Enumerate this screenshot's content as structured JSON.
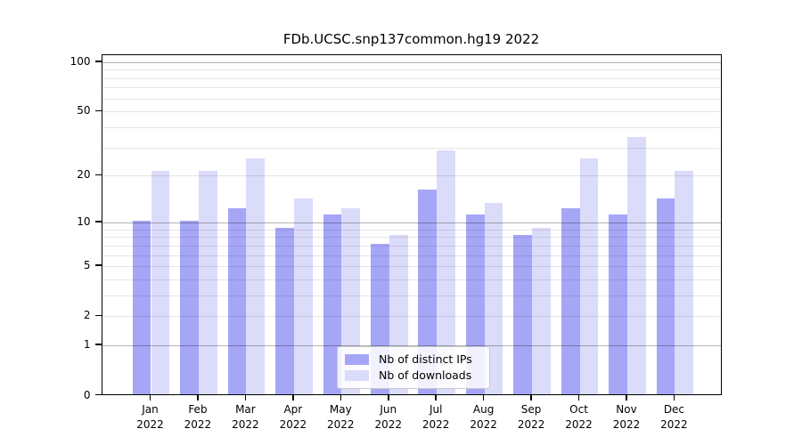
{
  "chart_data": {
    "type": "bar",
    "title": "FDb.UCSC.snp137common.hg19 2022",
    "categories": [
      "Jan",
      "Feb",
      "Mar",
      "Apr",
      "May",
      "Jun",
      "Jul",
      "Aug",
      "Sep",
      "Oct",
      "Nov",
      "Dec"
    ],
    "category_year": "2022",
    "series": [
      {
        "name": "Nb of distinct IPs",
        "color": "#a6a6f7",
        "values": [
          10,
          10,
          12,
          9,
          11,
          7,
          16,
          11,
          8,
          12,
          11,
          14
        ]
      },
      {
        "name": "Nb of downloads",
        "color": "#dbdbfa",
        "values": [
          21,
          21,
          25,
          14,
          12,
          8,
          28,
          13,
          9,
          25,
          34,
          21
        ]
      }
    ],
    "yscale": "log1p",
    "ylim": [
      0,
      110
    ],
    "yticks": [
      0,
      1,
      2,
      5,
      10,
      20,
      50,
      100
    ],
    "grid": true,
    "grid_minor_values": [
      2,
      3,
      4,
      5,
      6,
      7,
      8,
      9,
      20,
      30,
      40,
      50,
      60,
      70,
      80,
      90
    ],
    "grid_major_values": [
      1,
      10,
      100
    ],
    "legend_position": "lower center",
    "colors": {
      "background": "#ffffff",
      "frame": "#000000",
      "grid_minor": "rgba(0,0,0,0.10)",
      "grid_major": "rgba(0,0,0,0.30)"
    }
  }
}
